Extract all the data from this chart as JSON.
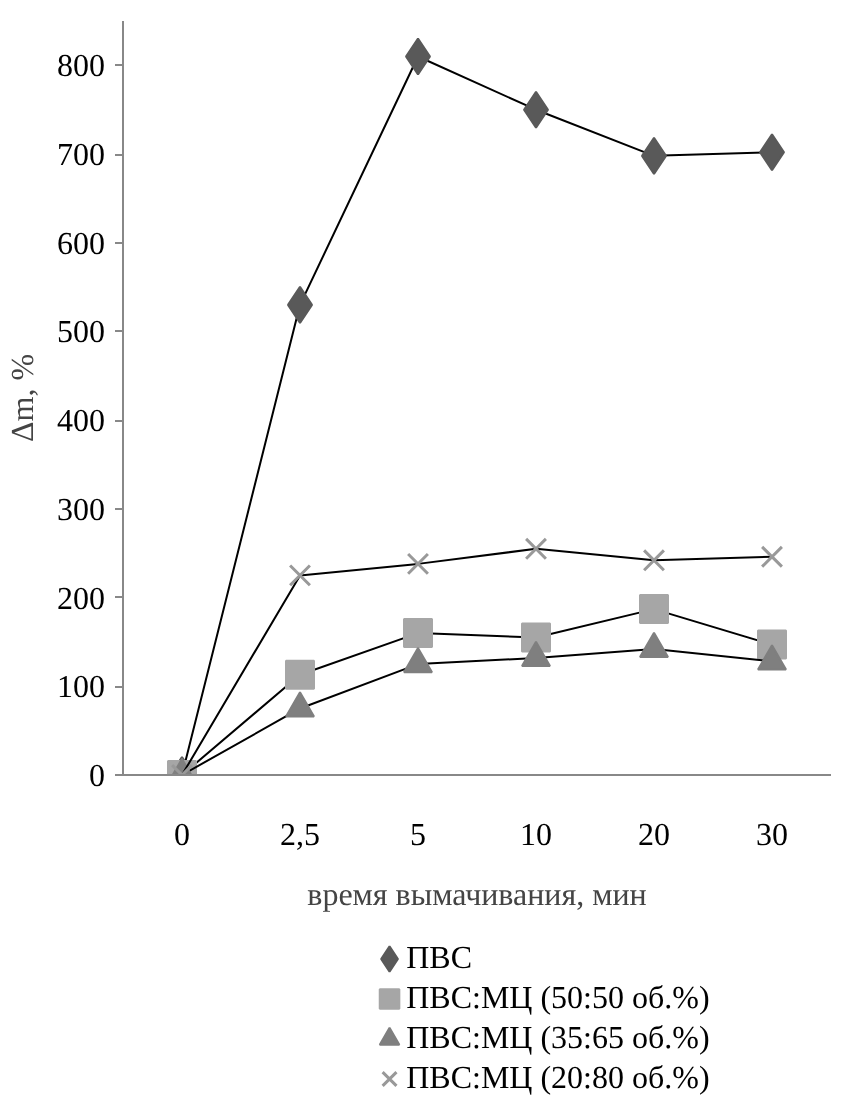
{
  "chart_data": {
    "type": "line",
    "ylabel": "Δm, %",
    "xlabel": "время вымачивания, мин",
    "categories": [
      "0",
      "2,5",
      "5",
      "10",
      "20",
      "30"
    ],
    "ylim": [
      0,
      850
    ],
    "yticks": [
      0,
      100,
      200,
      300,
      400,
      500,
      600,
      700,
      800
    ],
    "grid": false,
    "legend": "bottom",
    "line_style": "solid",
    "series": [
      {
        "name": "ПВС",
        "color": "#595959",
        "marker": "diamond",
        "values": [
          0,
          530,
          810,
          750,
          698,
          702
        ]
      },
      {
        "name": "ПВС:МЦ (50:50 об.%)",
        "color": "#a6a6a6",
        "marker": "square",
        "values": [
          0,
          113,
          160,
          155,
          187,
          147
        ]
      },
      {
        "name": "ПВС:МЦ (35:65 об.%)",
        "color": "#7f7f7f",
        "marker": "triangle",
        "values": [
          0,
          75,
          125,
          132,
          142,
          128
        ]
      },
      {
        "name": "ПВС:МЦ (20:80 об.%)",
        "color": "#999999",
        "marker": "cross",
        "values": [
          0,
          225,
          238,
          255,
          242,
          246
        ]
      }
    ]
  }
}
